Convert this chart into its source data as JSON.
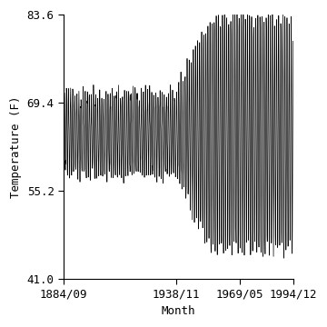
{
  "title": "",
  "xlabel": "Month",
  "ylabel": "Temperature (F)",
  "xlim_start_year": 1884,
  "xlim_start_month": 9,
  "xlim_end_year": 1994,
  "xlim_end_month": 12,
  "ylim": [
    41.0,
    83.6
  ],
  "yticks": [
    41.0,
    55.2,
    69.4,
    83.6
  ],
  "xtick_labels": [
    "1884/09",
    "1938/11",
    "1969/05",
    "1994/12"
  ],
  "xtick_positions_decimal": [
    1884.667,
    1938.833,
    1969.333,
    1994.917
  ],
  "line_color": "#000000",
  "line_width": 0.5,
  "background_color": "#ffffff",
  "data_start_year": 1884,
  "data_start_month": 9,
  "data_end_year": 1994,
  "data_end_month": 12,
  "mean_temp": 64.3,
  "amplitude_early": 6.5,
  "amplitude_late": 18.5,
  "transition_year": 1938,
  "transition_end_year": 1955
}
